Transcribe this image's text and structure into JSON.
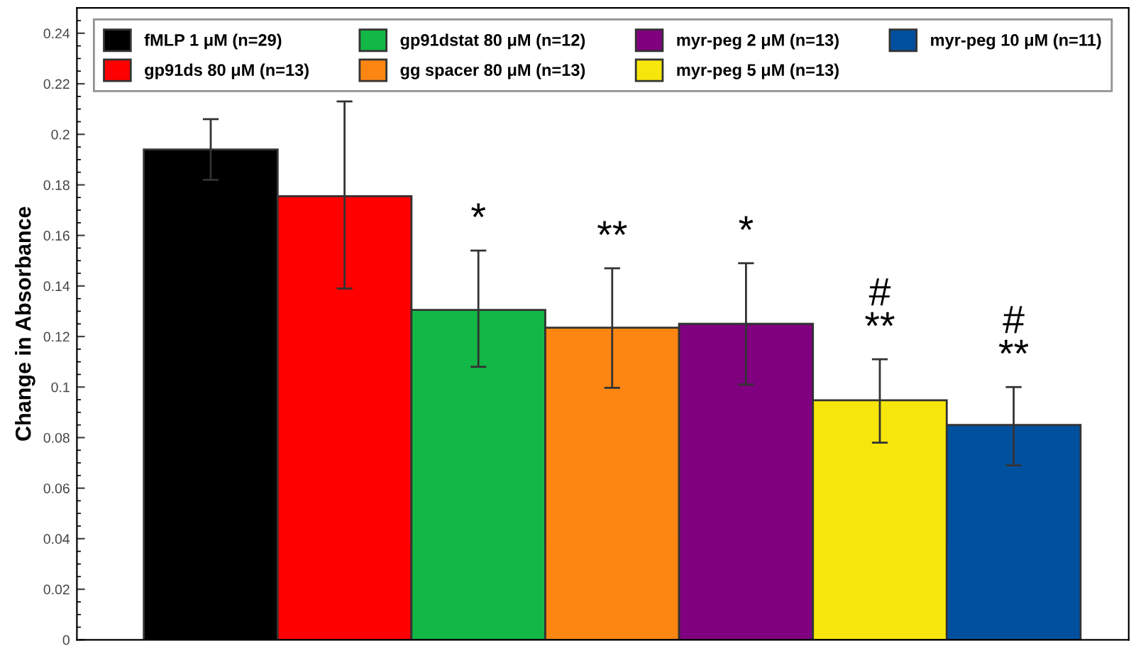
{
  "chart_data": {
    "type": "bar",
    "ylabel": "Change in Absorbance",
    "categories": [
      null,
      null,
      null,
      null,
      null,
      null,
      null
    ],
    "series": [
      {
        "name": "fMLP 1 μM (n=29)",
        "color": "#000000",
        "values": [
          0.194,
          null,
          null,
          null,
          null,
          null,
          null
        ],
        "errors": [
          [
            0.182,
            0.206
          ],
          null,
          null,
          null,
          null,
          null,
          null
        ]
      },
      {
        "name": "gp91ds 80 μM (n=13)",
        "color": "#ff0000",
        "values": [
          null,
          0.1755,
          null,
          null,
          null,
          null,
          null
        ],
        "errors": [
          null,
          [
            0.139,
            0.213
          ],
          null,
          null,
          null,
          null,
          null
        ]
      },
      {
        "name": "gp91dstat 80 μM (n=12)",
        "color": "#12b845",
        "values": [
          null,
          null,
          0.1305,
          null,
          null,
          null,
          null
        ],
        "errors": [
          null,
          null,
          [
            0.108,
            0.154
          ],
          null,
          null,
          null,
          null
        ]
      },
      {
        "name": "gg spacer 80 μM (n=13)",
        "color": "#fd8612",
        "values": [
          null,
          null,
          null,
          0.1235,
          null,
          null,
          null
        ],
        "errors": [
          null,
          null,
          null,
          [
            0.0997,
            0.147
          ],
          null,
          null,
          null
        ]
      },
      {
        "name": "myr-peg 2 μM (n=13)",
        "color": "#800080",
        "values": [
          null,
          null,
          null,
          null,
          0.125,
          null,
          null
        ],
        "errors": [
          null,
          null,
          null,
          null,
          [
            0.101,
            0.149
          ],
          null,
          null
        ]
      },
      {
        "name": "myr-peg 5 μM (n=13)",
        "color": "#f7e60c",
        "values": [
          null,
          null,
          null,
          null,
          null,
          0.0948,
          null
        ],
        "errors": [
          null,
          null,
          null,
          null,
          null,
          [
            0.078,
            0.111
          ],
          null
        ]
      },
      {
        "name": "myr-peg 10 μM (n=11)",
        "color": "#00509e",
        "values": [
          null,
          null,
          null,
          null,
          null,
          null,
          0.085
        ],
        "errors": [
          null,
          null,
          null,
          null,
          null,
          null,
          [
            0.069,
            0.1
          ]
        ]
      }
    ],
    "annotations": [
      "*",
      "**",
      "*",
      "#\n**",
      "#\n**"
    ],
    "ylim": [
      0,
      0.25
    ],
    "yticks": [
      0,
      0.02,
      0.04,
      0.06,
      0.08,
      0.1,
      0.12,
      0.14,
      0.16,
      0.18,
      0.2,
      0.22,
      0.24
    ],
    "grid": false,
    "legend": "top"
  }
}
